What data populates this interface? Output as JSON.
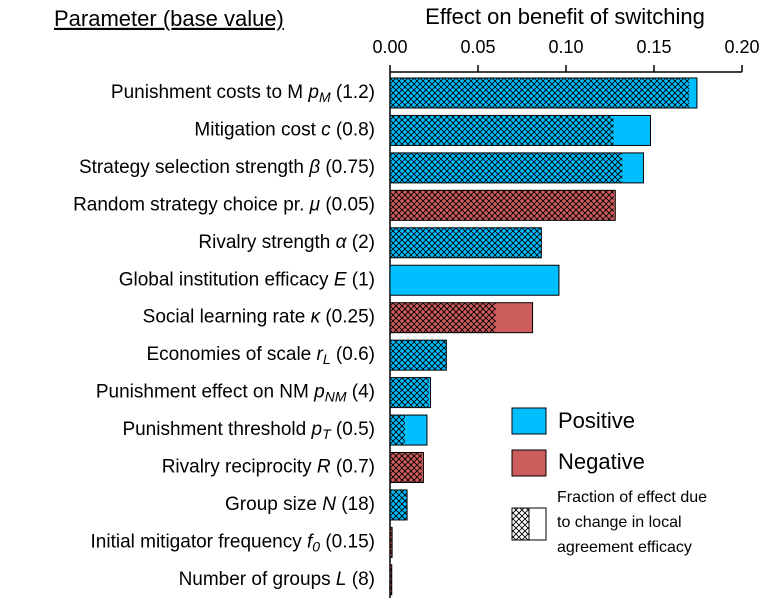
{
  "chart_data": {
    "type": "bar",
    "title": "Effect on benefit of switching",
    "category_header": "Parameter (base value)",
    "categories": [
      {
        "text": "Punishment costs to M ",
        "symbol": "p",
        "sub": "M",
        "base": " (1.2)"
      },
      {
        "text": "Mitigation cost ",
        "symbol": "c",
        "sub": null,
        "base": " (0.8)"
      },
      {
        "text": "Strategy selection strength ",
        "symbol": "β",
        "sub": null,
        "base": " (0.75)"
      },
      {
        "text": "Random strategy choice pr. ",
        "symbol": "μ",
        "sub": null,
        "base": " (0.05)"
      },
      {
        "text": "Rivalry strength ",
        "symbol": "α",
        "sub": null,
        "base": " (2)"
      },
      {
        "text": "Global institution efficacy ",
        "symbol": "E",
        "sub": null,
        "base": " (1)"
      },
      {
        "text": "Social learning rate ",
        "symbol": "κ",
        "sub": null,
        "base": " (0.25)"
      },
      {
        "text": "Economies of scale ",
        "symbol": "r",
        "sub": "L",
        "base": " (0.6)"
      },
      {
        "text": "Punishment effect on NM ",
        "symbol": "p",
        "sub": "NM",
        "base": " (4)"
      },
      {
        "text": "Punishment threshold ",
        "symbol": "p",
        "sub": "T",
        "base": " (0.5)"
      },
      {
        "text": "Rivalry reciprocity ",
        "symbol": "R",
        "sub": null,
        "base": " (0.7)"
      },
      {
        "text": "Group size ",
        "symbol": "N",
        "sub": null,
        "base": " (18)"
      },
      {
        "text": "Initial mitigator frequency ",
        "symbol": "f",
        "sub": "0",
        "base": " (0.15)"
      },
      {
        "text": "Number of groups ",
        "symbol": "L",
        "sub": null,
        "base": " (8)"
      }
    ],
    "series": [
      {
        "name": "Positive",
        "color": "#00bfff",
        "values": [
          0.1744,
          0.148,
          0.144,
          null,
          0.086,
          0.096,
          null,
          0.032,
          0.023,
          0.021,
          null,
          0.0097,
          null,
          null
        ],
        "local_values": [
          0.17,
          0.127,
          0.132,
          null,
          0.086,
          0,
          null,
          0.032,
          0.022,
          0.0085,
          null,
          0.0097,
          null,
          null
        ]
      },
      {
        "name": "Negative",
        "color": "#cd5c5c",
        "values": [
          null,
          null,
          null,
          0.128,
          null,
          null,
          0.081,
          null,
          null,
          null,
          0.019,
          null,
          0.0012,
          0.001
        ],
        "local_values": [
          null,
          null,
          null,
          0.127,
          null,
          null,
          0.06,
          null,
          null,
          null,
          0.018,
          null,
          0.0012,
          0.001
        ]
      }
    ],
    "legend_note": [
      "Fraction of effect due",
      "to change in local",
      "agreement efficacy"
    ],
    "xlim": [
      0,
      0.2
    ],
    "xticks": [
      {
        "value": 0,
        "label": "0.00"
      },
      0.05,
      {
        "value": 0.1,
        "label": "0.10"
      },
      0.15,
      {
        "value": 0.2,
        "label": "0.20"
      }
    ]
  }
}
